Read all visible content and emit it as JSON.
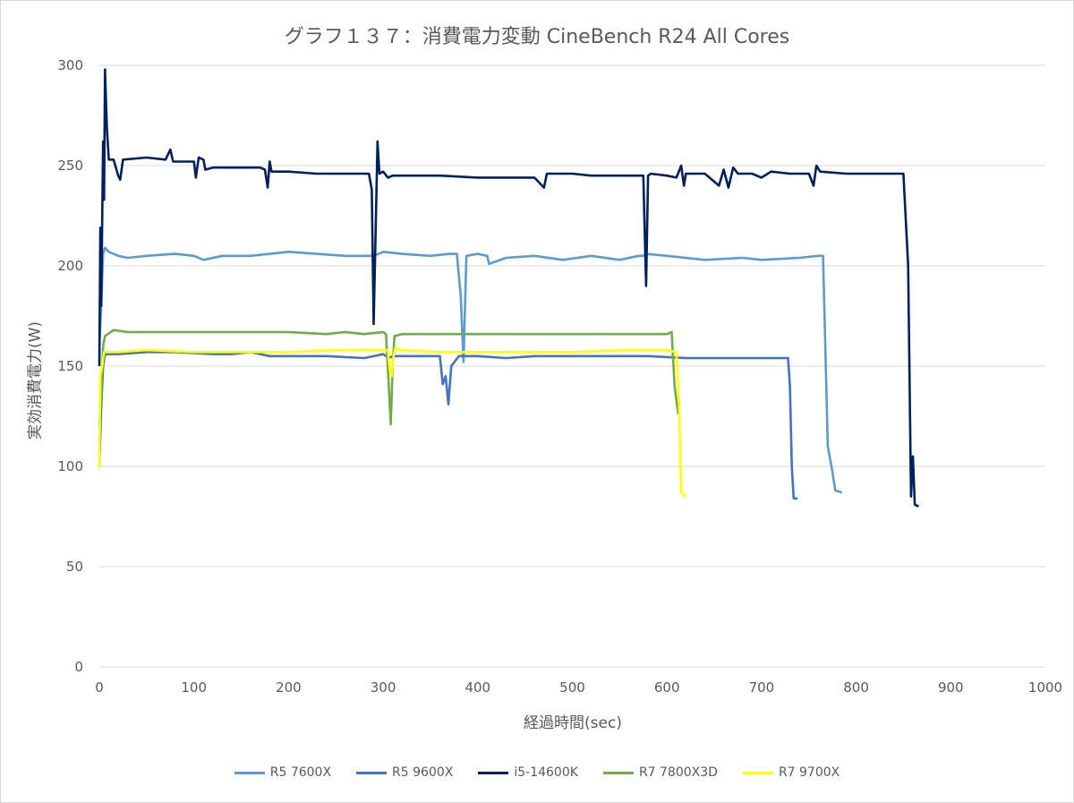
{
  "chart_data": {
    "type": "line",
    "title": "グラフ１３７：消費電力変動 CineBench R24 All Cores",
    "xlabel": "経過時間(sec)",
    "ylabel": "実効消費電力(W)",
    "xlim": [
      0,
      1000
    ],
    "ylim": [
      0,
      300
    ],
    "xticks": [
      0,
      100,
      200,
      300,
      400,
      500,
      600,
      700,
      800,
      900,
      1000
    ],
    "yticks": [
      0,
      50,
      100,
      150,
      200,
      250,
      300
    ],
    "grid": "horizontal",
    "legend_position": "bottom",
    "series": [
      {
        "name": "R5 7600X",
        "color": "#5b9bd5",
        "points": [
          [
            0,
            160
          ],
          [
            2,
            180
          ],
          [
            4,
            206
          ],
          [
            6,
            209
          ],
          [
            10,
            207
          ],
          [
            20,
            205
          ],
          [
            30,
            204
          ],
          [
            50,
            205
          ],
          [
            80,
            206
          ],
          [
            100,
            205
          ],
          [
            110,
            203
          ],
          [
            130,
            205
          ],
          [
            160,
            205
          ],
          [
            200,
            207
          ],
          [
            230,
            206
          ],
          [
            260,
            205
          ],
          [
            290,
            205
          ],
          [
            300,
            207
          ],
          [
            320,
            206
          ],
          [
            350,
            205
          ],
          [
            370,
            206
          ],
          [
            378,
            206
          ],
          [
            382,
            185
          ],
          [
            385,
            152
          ],
          [
            388,
            205
          ],
          [
            400,
            206
          ],
          [
            410,
            205
          ],
          [
            412,
            201
          ],
          [
            430,
            204
          ],
          [
            460,
            205
          ],
          [
            490,
            203
          ],
          [
            520,
            205
          ],
          [
            550,
            203
          ],
          [
            570,
            205
          ],
          [
            575,
            205
          ],
          [
            578,
            206
          ],
          [
            600,
            205
          ],
          [
            640,
            203
          ],
          [
            680,
            204
          ],
          [
            700,
            203
          ],
          [
            740,
            204
          ],
          [
            760,
            205
          ],
          [
            765,
            205
          ],
          [
            770,
            110
          ],
          [
            775,
            97
          ],
          [
            778,
            88
          ],
          [
            785,
            87
          ]
        ]
      },
      {
        "name": "R5 9600X",
        "color": "#4472c4",
        "points": [
          [
            0,
            100
          ],
          [
            2,
            130
          ],
          [
            4,
            150
          ],
          [
            6,
            156
          ],
          [
            20,
            156
          ],
          [
            50,
            157
          ],
          [
            80,
            157
          ],
          [
            120,
            156
          ],
          [
            140,
            156
          ],
          [
            160,
            157
          ],
          [
            180,
            155
          ],
          [
            200,
            155
          ],
          [
            240,
            155
          ],
          [
            280,
            154
          ],
          [
            300,
            156
          ],
          [
            306,
            154
          ],
          [
            310,
            155
          ],
          [
            340,
            155
          ],
          [
            360,
            155
          ],
          [
            363,
            141
          ],
          [
            366,
            145
          ],
          [
            369,
            131
          ],
          [
            372,
            150
          ],
          [
            380,
            155
          ],
          [
            400,
            155
          ],
          [
            430,
            154
          ],
          [
            460,
            155
          ],
          [
            500,
            155
          ],
          [
            540,
            155
          ],
          [
            580,
            155
          ],
          [
            620,
            154
          ],
          [
            660,
            154
          ],
          [
            700,
            154
          ],
          [
            728,
            154
          ],
          [
            730,
            140
          ],
          [
            732,
            100
          ],
          [
            734,
            84
          ],
          [
            738,
            84
          ]
        ]
      },
      {
        "name": "i5-14600K",
        "color": "#002060",
        "points": [
          [
            0,
            150
          ],
          [
            1,
            219
          ],
          [
            2,
            180
          ],
          [
            4,
            262
          ],
          [
            5,
            233
          ],
          [
            6,
            298
          ],
          [
            8,
            268
          ],
          [
            10,
            253
          ],
          [
            15,
            253
          ],
          [
            20,
            245
          ],
          [
            22,
            243
          ],
          [
            25,
            253
          ],
          [
            50,
            254
          ],
          [
            70,
            253
          ],
          [
            75,
            258
          ],
          [
            78,
            252
          ],
          [
            100,
            252
          ],
          [
            102,
            244
          ],
          [
            105,
            254
          ],
          [
            110,
            253
          ],
          [
            112,
            248
          ],
          [
            120,
            249
          ],
          [
            150,
            249
          ],
          [
            170,
            249
          ],
          [
            175,
            248
          ],
          [
            178,
            239
          ],
          [
            180,
            252
          ],
          [
            182,
            247
          ],
          [
            200,
            247
          ],
          [
            230,
            246
          ],
          [
            260,
            246
          ],
          [
            285,
            246
          ],
          [
            288,
            238
          ],
          [
            290,
            171
          ],
          [
            292,
            215
          ],
          [
            294,
            262
          ],
          [
            296,
            246
          ],
          [
            300,
            247
          ],
          [
            305,
            244
          ],
          [
            310,
            245
          ],
          [
            330,
            245
          ],
          [
            360,
            245
          ],
          [
            400,
            244
          ],
          [
            430,
            244
          ],
          [
            460,
            244
          ],
          [
            470,
            239
          ],
          [
            473,
            246
          ],
          [
            480,
            246
          ],
          [
            500,
            246
          ],
          [
            520,
            245
          ],
          [
            550,
            245
          ],
          [
            575,
            245
          ],
          [
            578,
            190
          ],
          [
            580,
            245
          ],
          [
            583,
            246
          ],
          [
            600,
            245
          ],
          [
            610,
            244
          ],
          [
            615,
            250
          ],
          [
            618,
            240
          ],
          [
            620,
            246
          ],
          [
            640,
            246
          ],
          [
            655,
            240
          ],
          [
            660,
            248
          ],
          [
            665,
            239
          ],
          [
            670,
            249
          ],
          [
            675,
            246
          ],
          [
            690,
            246
          ],
          [
            700,
            244
          ],
          [
            710,
            247
          ],
          [
            730,
            246
          ],
          [
            750,
            246
          ],
          [
            755,
            240
          ],
          [
            758,
            250
          ],
          [
            762,
            247
          ],
          [
            790,
            246
          ],
          [
            800,
            246
          ],
          [
            830,
            246
          ],
          [
            850,
            246
          ],
          [
            855,
            200
          ],
          [
            858,
            85
          ],
          [
            860,
            105
          ],
          [
            862,
            81
          ],
          [
            866,
            80
          ]
        ]
      },
      {
        "name": "R7 7800X3D",
        "color": "#70ad47",
        "points": [
          [
            0,
            120
          ],
          [
            2,
            135
          ],
          [
            4,
            160
          ],
          [
            6,
            165
          ],
          [
            15,
            168
          ],
          [
            30,
            167
          ],
          [
            60,
            167
          ],
          [
            100,
            167
          ],
          [
            150,
            167
          ],
          [
            200,
            167
          ],
          [
            240,
            166
          ],
          [
            260,
            167
          ],
          [
            280,
            166
          ],
          [
            300,
            167
          ],
          [
            303,
            166
          ],
          [
            306,
            140
          ],
          [
            308,
            121
          ],
          [
            310,
            150
          ],
          [
            312,
            165
          ],
          [
            320,
            166
          ],
          [
            350,
            166
          ],
          [
            400,
            166
          ],
          [
            450,
            166
          ],
          [
            500,
            166
          ],
          [
            560,
            166
          ],
          [
            600,
            166
          ],
          [
            605,
            167
          ],
          [
            608,
            140
          ],
          [
            612,
            126
          ]
        ]
      },
      {
        "name": "R7 9700X",
        "color": "#ffff00",
        "points": [
          [
            0,
            99
          ],
          [
            1,
            145
          ],
          [
            3,
            150
          ],
          [
            5,
            157
          ],
          [
            20,
            157
          ],
          [
            50,
            158
          ],
          [
            100,
            157
          ],
          [
            150,
            157
          ],
          [
            200,
            157
          ],
          [
            250,
            158
          ],
          [
            290,
            158
          ],
          [
            305,
            158
          ],
          [
            307,
            148
          ],
          [
            309,
            145
          ],
          [
            311,
            155
          ],
          [
            313,
            159
          ],
          [
            320,
            158
          ],
          [
            360,
            157
          ],
          [
            400,
            157
          ],
          [
            450,
            157
          ],
          [
            500,
            157
          ],
          [
            560,
            158
          ],
          [
            600,
            158
          ],
          [
            610,
            157
          ],
          [
            613,
            130
          ],
          [
            615,
            87
          ],
          [
            620,
            85
          ]
        ]
      }
    ]
  }
}
